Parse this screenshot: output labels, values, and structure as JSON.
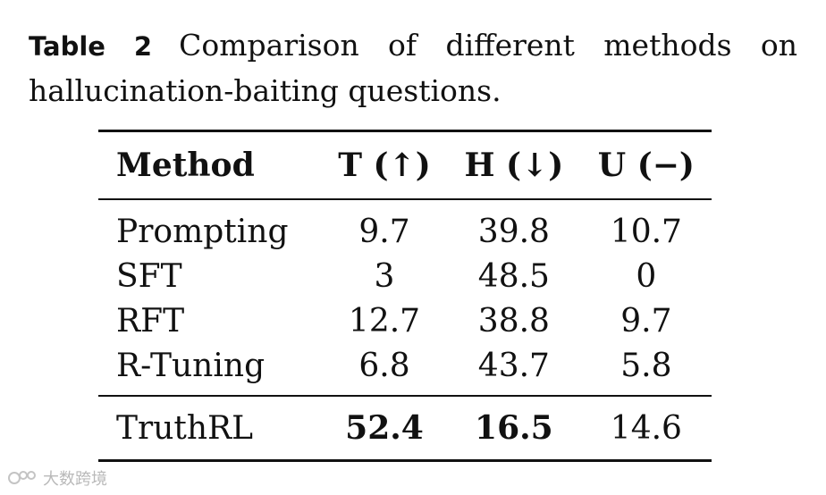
{
  "caption": {
    "label": "Table 2",
    "text": "Comparison of different methods on hallucination-baiting questions."
  },
  "table": {
    "headers": [
      "Method",
      "T (↑)",
      "H (↓)",
      "U (−)"
    ],
    "rows": [
      {
        "method": "Prompting",
        "t": "9.7",
        "h": "39.8",
        "u": "10.7"
      },
      {
        "method": "SFT",
        "t": "3",
        "h": "48.5",
        "u": "0"
      },
      {
        "method": "RFT",
        "t": "12.7",
        "h": "38.8",
        "u": "9.7"
      },
      {
        "method": "R-Tuning",
        "t": "6.8",
        "h": "43.7",
        "u": "5.8"
      }
    ],
    "highlight_row": {
      "method": "TruthRL",
      "t": "52.4",
      "h": "16.5",
      "u": "14.6"
    }
  },
  "watermark": {
    "text": "大数跨境",
    "icon": "logo-icon"
  }
}
